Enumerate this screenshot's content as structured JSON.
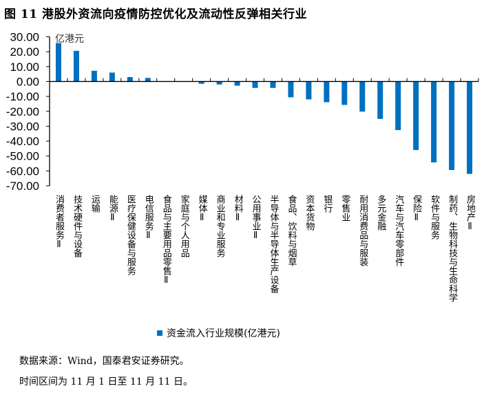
{
  "title": "图 11 港股外资流向疫情防控优化及流动性反弹相关行业",
  "chart_data": {
    "type": "bar",
    "title": "图 11 港股外资流向疫情防控优化及流动性反弹相关行业",
    "unit_label": "亿港元",
    "ylabel": "亿港元",
    "xlabel": "",
    "ylim": [
      -70,
      30
    ],
    "yticks": [
      "30.00",
      "20.00",
      "10.00",
      "0.00",
      "-10.00",
      "-20.00",
      "-30.00",
      "-40.00",
      "-50.00",
      "-60.00",
      "-70.00"
    ],
    "grid": false,
    "legend_position": "bottom",
    "series": [
      {
        "name": "资金流入行业规模(亿港元)",
        "color": "#0070c0",
        "values": [
          25.8,
          20.6,
          7.2,
          6.0,
          3.0,
          2.4,
          0.1,
          0.1,
          -1.5,
          -2.0,
          -2.8,
          -4.3,
          -4.3,
          -10.6,
          -12.0,
          -13.9,
          -15.7,
          -20.2,
          -25.1,
          -32.6,
          -46.0,
          -54.3,
          -59.4,
          -62.0
        ]
      }
    ],
    "categories": [
      "消费者服务Ⅱ",
      "技术硬件与设备",
      "运输",
      "能源Ⅱ",
      "医疗保健设备与服务",
      "电信服务Ⅱ",
      "食品与主要用品零售Ⅱ",
      "家庭与个人用品",
      "媒体Ⅱ",
      "商业和专业服务",
      "材料Ⅱ",
      "公用事业Ⅱ",
      "半导体与半导体生产设备",
      "食品、饮料与烟草",
      "资本货物",
      "银行",
      "零售业",
      "耐用消费品与服装",
      "多元金融",
      "汽车与汽车零部件",
      "保险Ⅱ",
      "软件与服务",
      "制药、生物科技与生命科学",
      "房地产Ⅱ"
    ]
  },
  "notes": [
    "数据来源：Wind，国泰君安证券研究。",
    "时间区间为 11 月 1 日至 11 月 11 日。"
  ]
}
